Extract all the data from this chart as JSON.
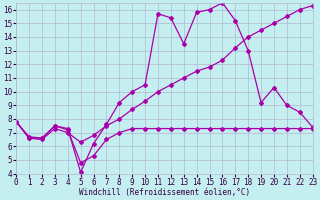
{
  "xlabel": "Windchill (Refroidissement éolien,°C)",
  "background_color": "#c5eef0",
  "grid_color": "#b0b8d0",
  "line_color": "#aa00aa",
  "x_min": 0,
  "x_max": 23,
  "y_min": 4,
  "y_max": 16.5,
  "line1_x": [
    0,
    1,
    2,
    3,
    4,
    5,
    6,
    7,
    8,
    9,
    10,
    11,
    12,
    13,
    14,
    15,
    16,
    17,
    18,
    19,
    20,
    21,
    22,
    23
  ],
  "line1_y": [
    7.8,
    6.6,
    6.6,
    7.5,
    7.3,
    4.1,
    6.2,
    7.6,
    9.2,
    10.0,
    10.5,
    15.7,
    15.4,
    13.5,
    15.8,
    16.0,
    16.5,
    15.2,
    13.0,
    9.2,
    10.3,
    9.0,
    8.5,
    7.4
  ],
  "line2_x": [
    0,
    1,
    2,
    3,
    4,
    5,
    6,
    7,
    8,
    9,
    10,
    11,
    12,
    13,
    14,
    15,
    16,
    17,
    18,
    19,
    20,
    21,
    22,
    23
  ],
  "line2_y": [
    7.8,
    6.6,
    6.5,
    7.3,
    7.0,
    6.3,
    6.8,
    7.5,
    8.0,
    8.7,
    9.3,
    10.0,
    10.5,
    11.0,
    11.5,
    11.8,
    12.3,
    13.2,
    14.0,
    14.5,
    15.0,
    15.5,
    16.0,
    16.3
  ],
  "line3_x": [
    0,
    1,
    2,
    3,
    4,
    5,
    6,
    7,
    8,
    9,
    10,
    11,
    12,
    13,
    14,
    15,
    16,
    17,
    18,
    19,
    20,
    21,
    22,
    23
  ],
  "line3_y": [
    7.8,
    6.7,
    6.6,
    7.5,
    7.2,
    4.8,
    5.3,
    6.5,
    7.0,
    7.3,
    7.3,
    7.3,
    7.3,
    7.3,
    7.3,
    7.3,
    7.3,
    7.3,
    7.3,
    7.3,
    7.3,
    7.3,
    7.3,
    7.3
  ],
  "yticks": [
    4,
    5,
    6,
    7,
    8,
    9,
    10,
    11,
    12,
    13,
    14,
    15,
    16
  ],
  "xticks": [
    0,
    1,
    2,
    3,
    4,
    5,
    6,
    7,
    8,
    9,
    10,
    11,
    12,
    13,
    14,
    15,
    16,
    17,
    18,
    19,
    20,
    21,
    22,
    23
  ],
  "marker": "D",
  "markersize": 2.0,
  "linewidth": 0.9,
  "tick_fontsize": 5.5,
  "xlabel_fontsize": 5.5
}
